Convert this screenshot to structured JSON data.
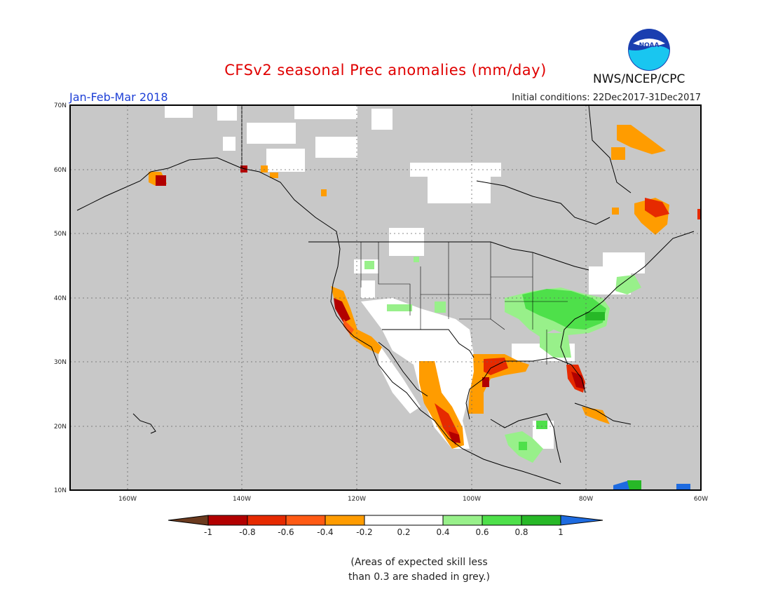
{
  "header": {
    "title": "CFSv2 seasonal Prec anomalies (mm/day)",
    "period": "Jan-Feb-Mar 2018",
    "initial_conditions": "Initial conditions: 22Dec2017-31Dec2017",
    "agency": "NWS/NCEP/CPC",
    "logo_text": "NOAA"
  },
  "map": {
    "lat_labels": [
      "70N",
      "60N",
      "50N",
      "40N",
      "30N",
      "20N",
      "10N"
    ],
    "lon_labels": [
      "160W",
      "140W",
      "120W",
      "100W",
      "80W",
      "60W"
    ],
    "skill_mask_color": "#c8c8c8"
  },
  "colorbar": {
    "labels": [
      "-1",
      "-0.8",
      "-0.6",
      "-0.4",
      "-0.2",
      "0.2",
      "0.4",
      "0.6",
      "0.8",
      "1"
    ],
    "colors": [
      "#6b3a1e",
      "#b20000",
      "#e62a00",
      "#ff5a14",
      "#ff9c00",
      "#ffffff",
      "#98f08a",
      "#4ee04a",
      "#27b827",
      "#0a9a18",
      "#1e6be0"
    ]
  },
  "footnote": {
    "line1": "(Areas of expected skill less",
    "line2": "than 0.3 are shaded in grey.)"
  }
}
